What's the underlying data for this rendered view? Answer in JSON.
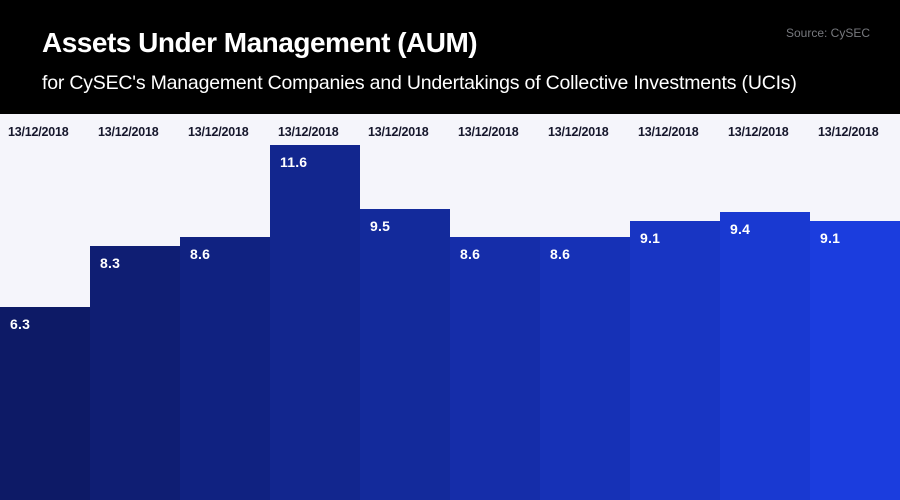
{
  "header": {
    "title": "Assets Under Management (AUM)",
    "subtitle": "for CySEC's Management Companies and Undertakings of Collective Investments (UCIs)",
    "source": "Source: CySEC"
  },
  "colors": {
    "header_bg": "#000000",
    "header_text": "#ffffff",
    "source_text": "#77797e",
    "plot_bg": "#f5f5fb",
    "date_label": "#16172c",
    "value_label": "#ffffff",
    "bar_colors": [
      "#0D1A66",
      "#0F1E73",
      "#102281",
      "#12268E",
      "#132A9B",
      "#152DA9",
      "#1631B6",
      "#1835C3",
      "#1939D1",
      "#1B3DDE"
    ]
  },
  "chart_data": {
    "type": "bar",
    "title": "Assets Under Management (AUM)",
    "subtitle": "for CySEC's Management Companies and Undertakings of Collective Investments (UCIs)",
    "source": "Source: CySEC",
    "categories": [
      "13/12/2018",
      "13/12/2018",
      "13/12/2018",
      "13/12/2018",
      "13/12/2018",
      "13/12/2018",
      "13/12/2018",
      "13/12/2018",
      "13/12/2018",
      "13/12/2018"
    ],
    "values": [
      6.3,
      8.3,
      8.6,
      11.6,
      9.5,
      8.6,
      8.6,
      9.1,
      9.4,
      9.1
    ],
    "xlabel": "",
    "ylabel": "",
    "ylim": [
      0,
      12.6
    ],
    "grid": false,
    "legend": "none",
    "bar_value_labels": true,
    "category_labels_position": "top",
    "bar_gap": 0
  }
}
